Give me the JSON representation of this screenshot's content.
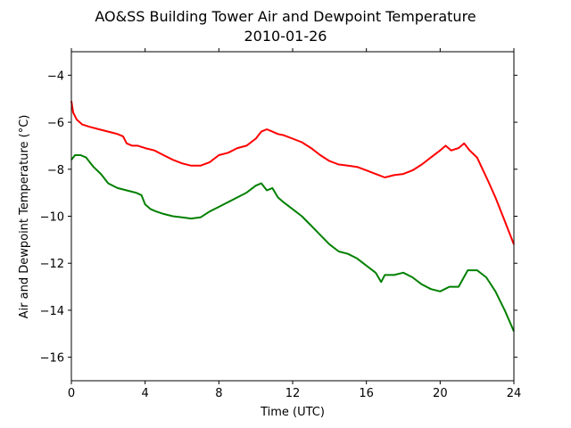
{
  "chart_data": {
    "type": "line",
    "title_line1": "AO&SS Building Tower Air and Dewpoint Temperature",
    "title_line2": "2010-01-26",
    "xlabel": "Time (UTC)",
    "ylabel": "Air and Dewpoint Temperature (°C)",
    "xlim": [
      0,
      24
    ],
    "ylim": [
      -17,
      -3
    ],
    "xticks": [
      0,
      4,
      8,
      12,
      16,
      20,
      24
    ],
    "yticks": [
      -16,
      -14,
      -12,
      -10,
      -8,
      -6,
      -4
    ],
    "ytick_labels": [
      "−16",
      "−14",
      "−12",
      "−10",
      "−8",
      "−6",
      "−4"
    ],
    "grid": false,
    "series": [
      {
        "color": "#ff0000",
        "x": [
          0,
          0.1,
          0.3,
          0.6,
          1,
          1.5,
          2,
          2.5,
          2.8,
          3,
          3.3,
          3.6,
          4,
          4.5,
          5,
          5.5,
          6,
          6.5,
          7,
          7.5,
          8,
          8.5,
          9,
          9.5,
          10,
          10.3,
          10.6,
          10.9,
          11.2,
          11.5,
          12,
          12.5,
          13,
          13.5,
          14,
          14.5,
          15,
          15.5,
          16,
          16.5,
          17,
          17.5,
          18,
          18.5,
          19,
          19.5,
          20,
          20.3,
          20.6,
          21,
          21.3,
          21.6,
          22,
          22.3,
          22.6,
          23,
          23.5,
          24
        ],
        "values": [
          -5.1,
          -5.6,
          -5.9,
          -6.1,
          -6.2,
          -6.3,
          -6.4,
          -6.5,
          -6.6,
          -6.9,
          -7.0,
          -7.0,
          -7.1,
          -7.2,
          -7.4,
          -7.6,
          -7.75,
          -7.85,
          -7.85,
          -7.7,
          -7.4,
          -7.3,
          -7.1,
          -7.0,
          -6.7,
          -6.4,
          -6.3,
          -6.4,
          -6.5,
          -6.55,
          -6.7,
          -6.85,
          -7.1,
          -7.4,
          -7.65,
          -7.8,
          -7.85,
          -7.9,
          -8.05,
          -8.2,
          -8.35,
          -8.25,
          -8.2,
          -8.05,
          -7.8,
          -7.5,
          -7.2,
          -7.0,
          -7.2,
          -7.1,
          -6.9,
          -7.2,
          -7.5,
          -8.0,
          -8.5,
          -9.2,
          -10.2,
          -11.2
        ]
      },
      {
        "color": "#008000",
        "x": [
          0,
          0.2,
          0.5,
          0.8,
          1.2,
          1.6,
          2,
          2.5,
          3,
          3.5,
          3.8,
          4,
          4.3,
          4.6,
          5,
          5.5,
          6,
          6.5,
          7,
          7.5,
          8,
          8.5,
          9,
          9.5,
          10,
          10.3,
          10.6,
          10.9,
          11.2,
          11.5,
          12,
          12.5,
          13,
          13.5,
          14,
          14.5,
          15,
          15.5,
          16,
          16.5,
          16.8,
          17,
          17.5,
          18,
          18.5,
          19,
          19.5,
          20,
          20.5,
          21,
          21.5,
          22,
          22.5,
          23,
          23.5,
          24
        ],
        "values": [
          -7.6,
          -7.4,
          -7.4,
          -7.5,
          -7.9,
          -8.2,
          -8.6,
          -8.8,
          -8.9,
          -9.0,
          -9.1,
          -9.5,
          -9.7,
          -9.8,
          -9.9,
          -10.0,
          -10.05,
          -10.1,
          -10.05,
          -9.8,
          -9.6,
          -9.4,
          -9.2,
          -9.0,
          -8.7,
          -8.6,
          -8.9,
          -8.8,
          -9.2,
          -9.4,
          -9.7,
          -10.0,
          -10.4,
          -10.8,
          -11.2,
          -11.5,
          -11.6,
          -11.8,
          -12.1,
          -12.4,
          -12.8,
          -12.5,
          -12.5,
          -12.4,
          -12.6,
          -12.9,
          -13.1,
          -13.2,
          -13.0,
          -13.0,
          -12.3,
          -12.3,
          -12.6,
          -13.2,
          -14.0,
          -14.9
        ]
      }
    ]
  }
}
